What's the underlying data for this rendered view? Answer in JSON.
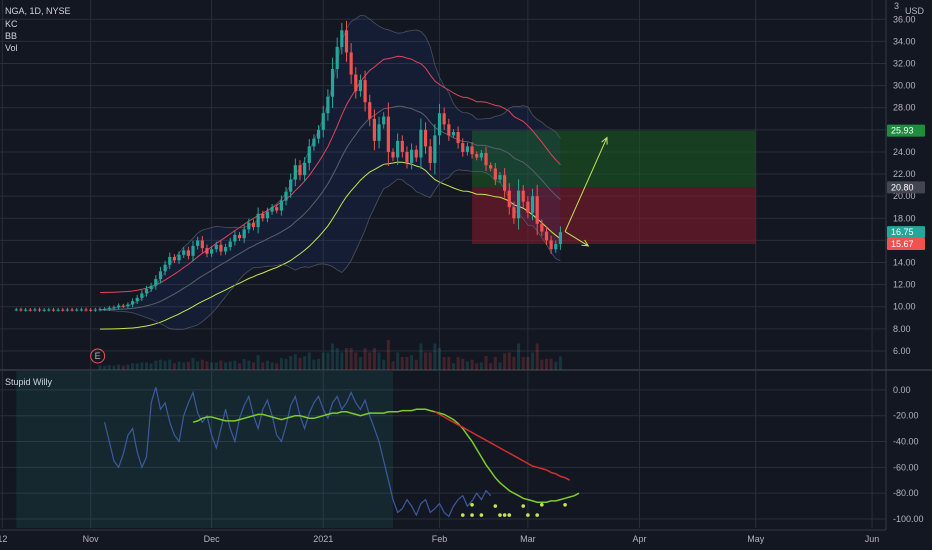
{
  "symbol_line": "NGA, 1D, NYSE",
  "indicators": [
    "KC",
    "BB",
    "Vol"
  ],
  "currency": "USD",
  "top_right_partial": "3",
  "earnings_marker": "E",
  "colors": {
    "background": "#131722",
    "up": "#26a69a",
    "down": "#ef5350",
    "grid": "#2a2e39",
    "kc_upper": "#e0445a",
    "kc_lower": "#c6e64f",
    "bb": "#5d606b",
    "long_target": "#1b5e20",
    "long_stop": "#8b1a2a",
    "arrow": "#c6e64f",
    "osc": "#3d5a9e",
    "osc_signal": "#7ccd29",
    "osc_ma": "#d32f2f",
    "osc_dot": "#c6e64f"
  },
  "chart_data": [
    {
      "type": "candlestick",
      "title": "NGA, 1D, NYSE",
      "y_axis": {
        "ticks": [
          36,
          34,
          32,
          30,
          28,
          26,
          24,
          22,
          20,
          18,
          16,
          14,
          12,
          10,
          8,
          6
        ],
        "labels": [
          "36.00",
          "34.00",
          "32.00",
          "30.00",
          "28.00",
          "26.00",
          "24.00",
          "22.00",
          "20.00",
          "18.00",
          "16.00",
          "14.00",
          "12.00",
          "10.00",
          "8.00",
          "6.00"
        ],
        "range": [
          5,
          37.2
        ]
      },
      "x_axis": {
        "labels": [
          {
            "t": -3,
            "text": "12"
          },
          {
            "t": 16,
            "text": "Nov"
          },
          {
            "t": 42,
            "text": "Dec"
          },
          {
            "t": 66,
            "text": "2021"
          },
          {
            "t": 91,
            "text": "Feb"
          },
          {
            "t": 110,
            "text": "Mar"
          },
          {
            "t": 134,
            "text": "Apr"
          },
          {
            "t": 159,
            "text": "May"
          },
          {
            "t": 184,
            "text": "Jun"
          }
        ],
        "range": [
          -3.5,
          187
        ]
      },
      "price_tags": [
        {
          "value": 25.93,
          "label": "25.93",
          "color": "#1e8e3e"
        },
        {
          "value": 20.8,
          "label": "20.80",
          "color": "#434651"
        },
        {
          "value": 16.75,
          "label": "16.75",
          "color": "#26a69a"
        },
        {
          "value": 15.67,
          "label": "15.67",
          "color": "#ef5350"
        }
      ],
      "positions": [
        {
          "kind": "target",
          "from": 98,
          "to": 159,
          "low": 20.8,
          "high": 25.93
        },
        {
          "kind": "stop",
          "from": 98,
          "to": 159,
          "low": 15.67,
          "high": 20.8
        }
      ],
      "arrows": [
        {
          "from": [
            118,
            16.8
          ],
          "to": [
            127,
            25.3
          ]
        },
        {
          "from": [
            118,
            16.8
          ],
          "to": [
            123,
            15.5
          ]
        }
      ],
      "closes": [
        9.75,
        9.72,
        9.73,
        9.72,
        9.75,
        9.7,
        9.72,
        9.74,
        9.71,
        9.73,
        9.72,
        9.74,
        9.72,
        9.73,
        9.75,
        9.72,
        9.7,
        9.74,
        9.78,
        9.8,
        9.9,
        9.95,
        10.1,
        10.05,
        10.2,
        10.5,
        10.8,
        11.2,
        11.6,
        11.9,
        12.5,
        13.2,
        13.8,
        14.5,
        14.2,
        14.7,
        15.1,
        14.6,
        15.5,
        16.0,
        15.3,
        14.8,
        15.2,
        15.6,
        15.0,
        15.4,
        15.9,
        16.5,
        16.2,
        17.0,
        17.6,
        17.2,
        18.4,
        18.0,
        18.6,
        19.0,
        18.7,
        19.6,
        20.4,
        21.5,
        22.8,
        21.9,
        23.0,
        24.5,
        25.2,
        26.0,
        27.5,
        29.0,
        31.5,
        33.5,
        35.0,
        33.0,
        31.0,
        29.5,
        30.5,
        28.5,
        27.0,
        25.0,
        26.5,
        27.2,
        24.0,
        23.5,
        25.0,
        24.0,
        23.0,
        24.2,
        23.5,
        26.0,
        24.5,
        23.0,
        25.5,
        27.5,
        26.5,
        25.5,
        25.8,
        24.8,
        24.0,
        24.5,
        23.8,
        23.5,
        23.9,
        22.8,
        22.5,
        21.5,
        21.9,
        20.5,
        19.0,
        18.0,
        20.5,
        19.5,
        18.5,
        20.0,
        17.5,
        16.8,
        16.0,
        15.2,
        15.67,
        16.75
      ],
      "volume_note": "volume histogram behind price pane"
    },
    {
      "type": "line",
      "title": "Stupid Willy",
      "y_axis": {
        "ticks": [
          0,
          -20,
          -40,
          -60,
          -80,
          -100
        ],
        "labels": [
          "0.00",
          "-20.00",
          "-40.00",
          "-60.00",
          "-80.00",
          "-100.00"
        ],
        "range": [
          -107,
          10
        ]
      },
      "osc": [
        -25,
        -40,
        -55,
        -60,
        -50,
        -35,
        -30,
        -48,
        -60,
        -52,
        -10,
        2,
        -15,
        -10,
        -25,
        -35,
        -40,
        -20,
        -10,
        -2,
        -18,
        -25,
        -20,
        -35,
        -45,
        -30,
        -15,
        -30,
        -40,
        -22,
        -12,
        -5,
        -20,
        -30,
        -15,
        -8,
        -20,
        -35,
        -40,
        -28,
        -12,
        -5,
        -20,
        -30,
        -18,
        -10,
        -5,
        -15,
        -22,
        -10,
        -5,
        -15,
        -10,
        -2,
        -10,
        -15,
        -8,
        -20,
        -30,
        -40,
        -55,
        -70,
        -85,
        -95,
        -92,
        -85,
        -90,
        -97,
        -88,
        -85,
        -95,
        -92,
        -88,
        -95,
        -98,
        -90,
        -85,
        -82,
        -90,
        -86,
        -80,
        -85,
        -78,
        -82
      ],
      "osc_start": 19,
      "signal": [
        -25,
        -24,
        -22,
        -21,
        -21,
        -22,
        -23,
        -24,
        -24,
        -24,
        -23,
        -22,
        -21,
        -20,
        -19,
        -19,
        -20,
        -21,
        -22,
        -23,
        -22,
        -21,
        -20,
        -20,
        -21,
        -22,
        -22,
        -21,
        -20,
        -19,
        -18,
        -18,
        -17,
        -17,
        -18,
        -19,
        -20,
        -19,
        -18,
        -18,
        -18,
        -18,
        -17,
        -17,
        -17,
        -16,
        -16,
        -16,
        -15,
        -15,
        -15,
        -16,
        -17,
        -18,
        -19,
        -21,
        -23,
        -26,
        -30,
        -35,
        -40,
        -46,
        -52,
        -58,
        -63,
        -68,
        -72,
        -75,
        -78,
        -80,
        -82,
        -84,
        -85,
        -86,
        -87,
        -87,
        -87,
        -86,
        -86,
        -85,
        -84,
        -83,
        -82,
        -80
      ],
      "signal_start": 38,
      "ma": [
        -17,
        -19,
        -21,
        -23,
        -25,
        -27,
        -29,
        -31,
        -33,
        -35,
        -37,
        -39,
        -41,
        -43,
        -45,
        -47,
        -49,
        -51,
        -53,
        -55,
        -57,
        -59,
        -60,
        -61,
        -62,
        -64,
        -65,
        -67,
        -68,
        -70
      ],
      "ma_start": 90,
      "dots": [
        {
          "t": 98,
          "v": -89
        },
        {
          "t": 103,
          "v": -90
        },
        {
          "t": 109,
          "v": -90
        },
        {
          "t": 113,
          "v": -89
        },
        {
          "t": 118,
          "v": -89
        },
        {
          "t": 96,
          "v": -97
        },
        {
          "t": 98,
          "v": -97
        },
        {
          "t": 100,
          "v": -97
        },
        {
          "t": 104,
          "v": -97
        },
        {
          "t": 105,
          "v": -97
        },
        {
          "t": 106,
          "v": -97
        },
        {
          "t": 110,
          "v": -97
        },
        {
          "t": 112,
          "v": -97
        }
      ],
      "shade": {
        "from": 0,
        "to": 81
      }
    }
  ]
}
